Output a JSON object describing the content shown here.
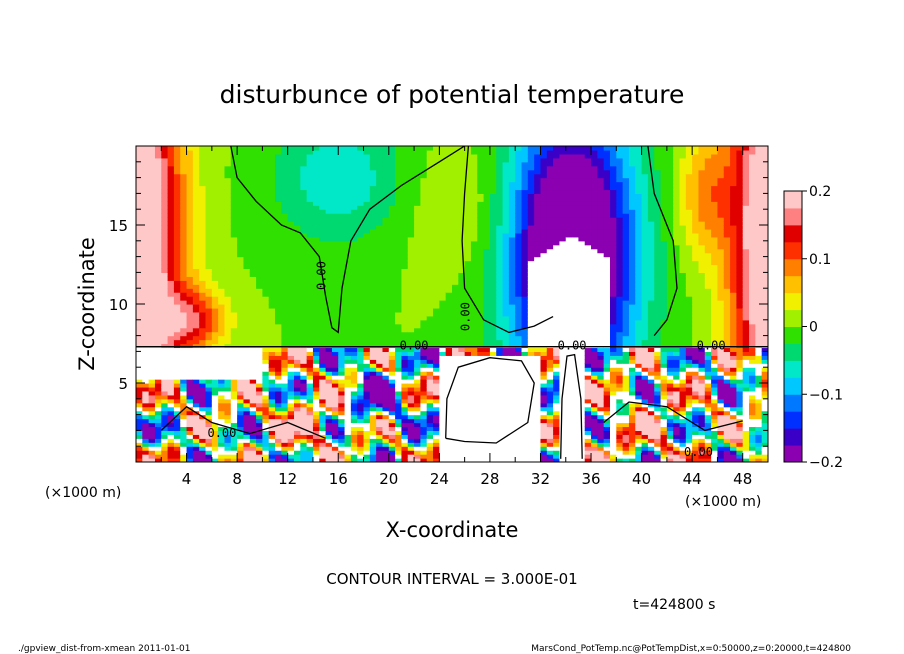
{
  "chart_data": {
    "type": "heatmap",
    "title": "disturbunce of potential temperature",
    "xlabel": "X-coordinate",
    "ylabel": "Z-coordinate",
    "x_unit_left": "(×1000 m)",
    "x_unit_right": "(×1000 m)",
    "xlim": [
      0,
      50
    ],
    "ylim": [
      0,
      20
    ],
    "x_ticks": [
      "4",
      "8",
      "12",
      "16",
      "20",
      "24",
      "28",
      "32",
      "36",
      "40",
      "44",
      "48"
    ],
    "y_ticks": [
      "5",
      "10",
      "15"
    ],
    "colorbar": {
      "range": [
        -0.2,
        0.2
      ],
      "tick_labels": [
        "0.2",
        "0.1",
        "0",
        "−0.1",
        "−0.2"
      ],
      "tick_values": [
        0.2,
        0.1,
        0,
        -0.1,
        -0.2
      ]
    },
    "contour_label": "0.00",
    "contour_interval_text": "CONTOUR INTERVAL = 3.000E-01",
    "time_text": "t=424800 s",
    "grid": false
  },
  "footer": {
    "left": "./gpview_dist-from-xmean  2011-01-01",
    "right": "MarsCond_PotTemp.nc@PotTempDist,x=0:50000,z=0:20000,t=424800"
  },
  "colors": {
    "palette": [
      "#8b00b0",
      "#3a00c8",
      "#0030ff",
      "#0078ff",
      "#00c8ff",
      "#00e8c8",
      "#00d870",
      "#30e000",
      "#a0f000",
      "#f0f000",
      "#ffc000",
      "#ff8000",
      "#ff3000",
      "#e00000",
      "#ff8080",
      "#ffc8c8"
    ]
  }
}
